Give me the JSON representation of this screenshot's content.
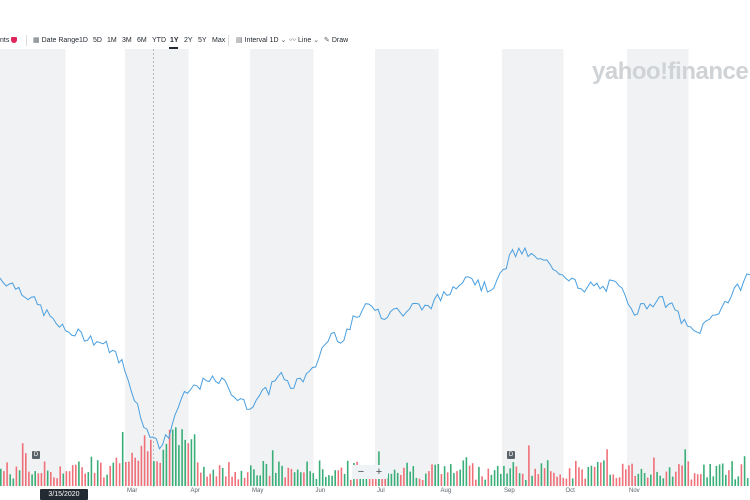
{
  "toolbar": {
    "events_label": "nts",
    "date_range_label": "Date Range",
    "ranges": [
      "1D",
      "5D",
      "1M",
      "3M",
      "6M",
      "YTD",
      "1Y",
      "2Y",
      "5Y",
      "Max"
    ],
    "active_range": "1Y",
    "interval_label": "Interval",
    "interval_value": "1D",
    "chart_type_label": "Line",
    "draw_label": "Draw"
  },
  "watermark": "yahoo!finance",
  "crosshair_date": "3/15/2020",
  "zoom": {
    "out_label": "−",
    "in_label": "+"
  },
  "event_marker_label": "D",
  "colors": {
    "line": "#4a9fe0",
    "up_volume": "#3aae78",
    "down_volume": "#f0707a",
    "band": "#f1f2f3"
  },
  "chart_data": {
    "type": "line",
    "title": "",
    "xlabel": "",
    "ylabel": "",
    "x_tick_labels": [
      "Mar",
      "Apr",
      "May",
      "Jun",
      "Jul",
      "Aug",
      "Sep",
      "Oct",
      "Nov"
    ],
    "ylim": [
      0,
      100
    ],
    "price": [
      [
        "2019-12-31",
        64
      ],
      [
        "2020-01-10",
        60
      ],
      [
        "2020-01-20",
        53
      ],
      [
        "2020-01-31",
        45
      ],
      [
        "2020-02-10",
        43
      ],
      [
        "2020-02-20",
        40
      ],
      [
        "2020-02-28",
        34
      ],
      [
        "2020-03-05",
        22
      ],
      [
        "2020-03-10",
        12
      ],
      [
        "2020-03-13",
        5
      ],
      [
        "2020-03-16",
        8
      ],
      [
        "2020-03-18",
        2
      ],
      [
        "2020-03-23",
        8
      ],
      [
        "2020-03-26",
        16
      ],
      [
        "2020-03-31",
        22
      ],
      [
        "2020-04-05",
        25
      ],
      [
        "2020-04-10",
        26
      ],
      [
        "2020-04-15",
        27
      ],
      [
        "2020-04-20",
        25
      ],
      [
        "2020-04-25",
        20
      ],
      [
        "2020-04-30",
        17
      ],
      [
        "2020-05-05",
        21
      ],
      [
        "2020-05-10",
        23
      ],
      [
        "2020-05-15",
        30
      ],
      [
        "2020-05-20",
        24
      ],
      [
        "2020-05-25",
        27
      ],
      [
        "2020-05-31",
        29
      ],
      [
        "2020-06-05",
        38
      ],
      [
        "2020-06-10",
        44
      ],
      [
        "2020-06-15",
        42
      ],
      [
        "2020-06-20",
        48
      ],
      [
        "2020-06-25",
        52
      ],
      [
        "2020-06-30",
        55
      ],
      [
        "2020-07-05",
        50
      ],
      [
        "2020-07-10",
        53
      ],
      [
        "2020-07-15",
        51
      ],
      [
        "2020-07-20",
        54
      ],
      [
        "2020-07-25",
        53
      ],
      [
        "2020-07-31",
        56
      ],
      [
        "2020-08-05",
        58
      ],
      [
        "2020-08-10",
        62
      ],
      [
        "2020-08-15",
        66
      ],
      [
        "2020-08-20",
        62
      ],
      [
        "2020-08-25",
        60
      ],
      [
        "2020-08-31",
        64
      ],
      [
        "2020-09-05",
        72
      ],
      [
        "2020-09-10",
        74
      ],
      [
        "2020-09-15",
        72
      ],
      [
        "2020-09-20",
        70
      ],
      [
        "2020-09-25",
        69
      ],
      [
        "2020-09-30",
        66
      ],
      [
        "2020-10-05",
        64
      ],
      [
        "2020-10-10",
        58
      ],
      [
        "2020-10-15",
        62
      ],
      [
        "2020-10-20",
        60
      ],
      [
        "2020-10-25",
        62
      ],
      [
        "2020-10-31",
        58
      ],
      [
        "2020-11-05",
        52
      ],
      [
        "2020-11-10",
        54
      ],
      [
        "2020-11-15",
        56
      ],
      [
        "2020-11-20",
        55
      ],
      [
        "2020-11-25",
        52
      ],
      [
        "2020-11-30",
        46
      ],
      [
        "2020-12-05",
        44
      ],
      [
        "2020-12-10",
        48
      ],
      [
        "2020-12-15",
        52
      ],
      [
        "2020-12-20",
        56
      ],
      [
        "2020-12-25",
        60
      ],
      [
        "2020-12-31",
        66
      ]
    ]
  }
}
